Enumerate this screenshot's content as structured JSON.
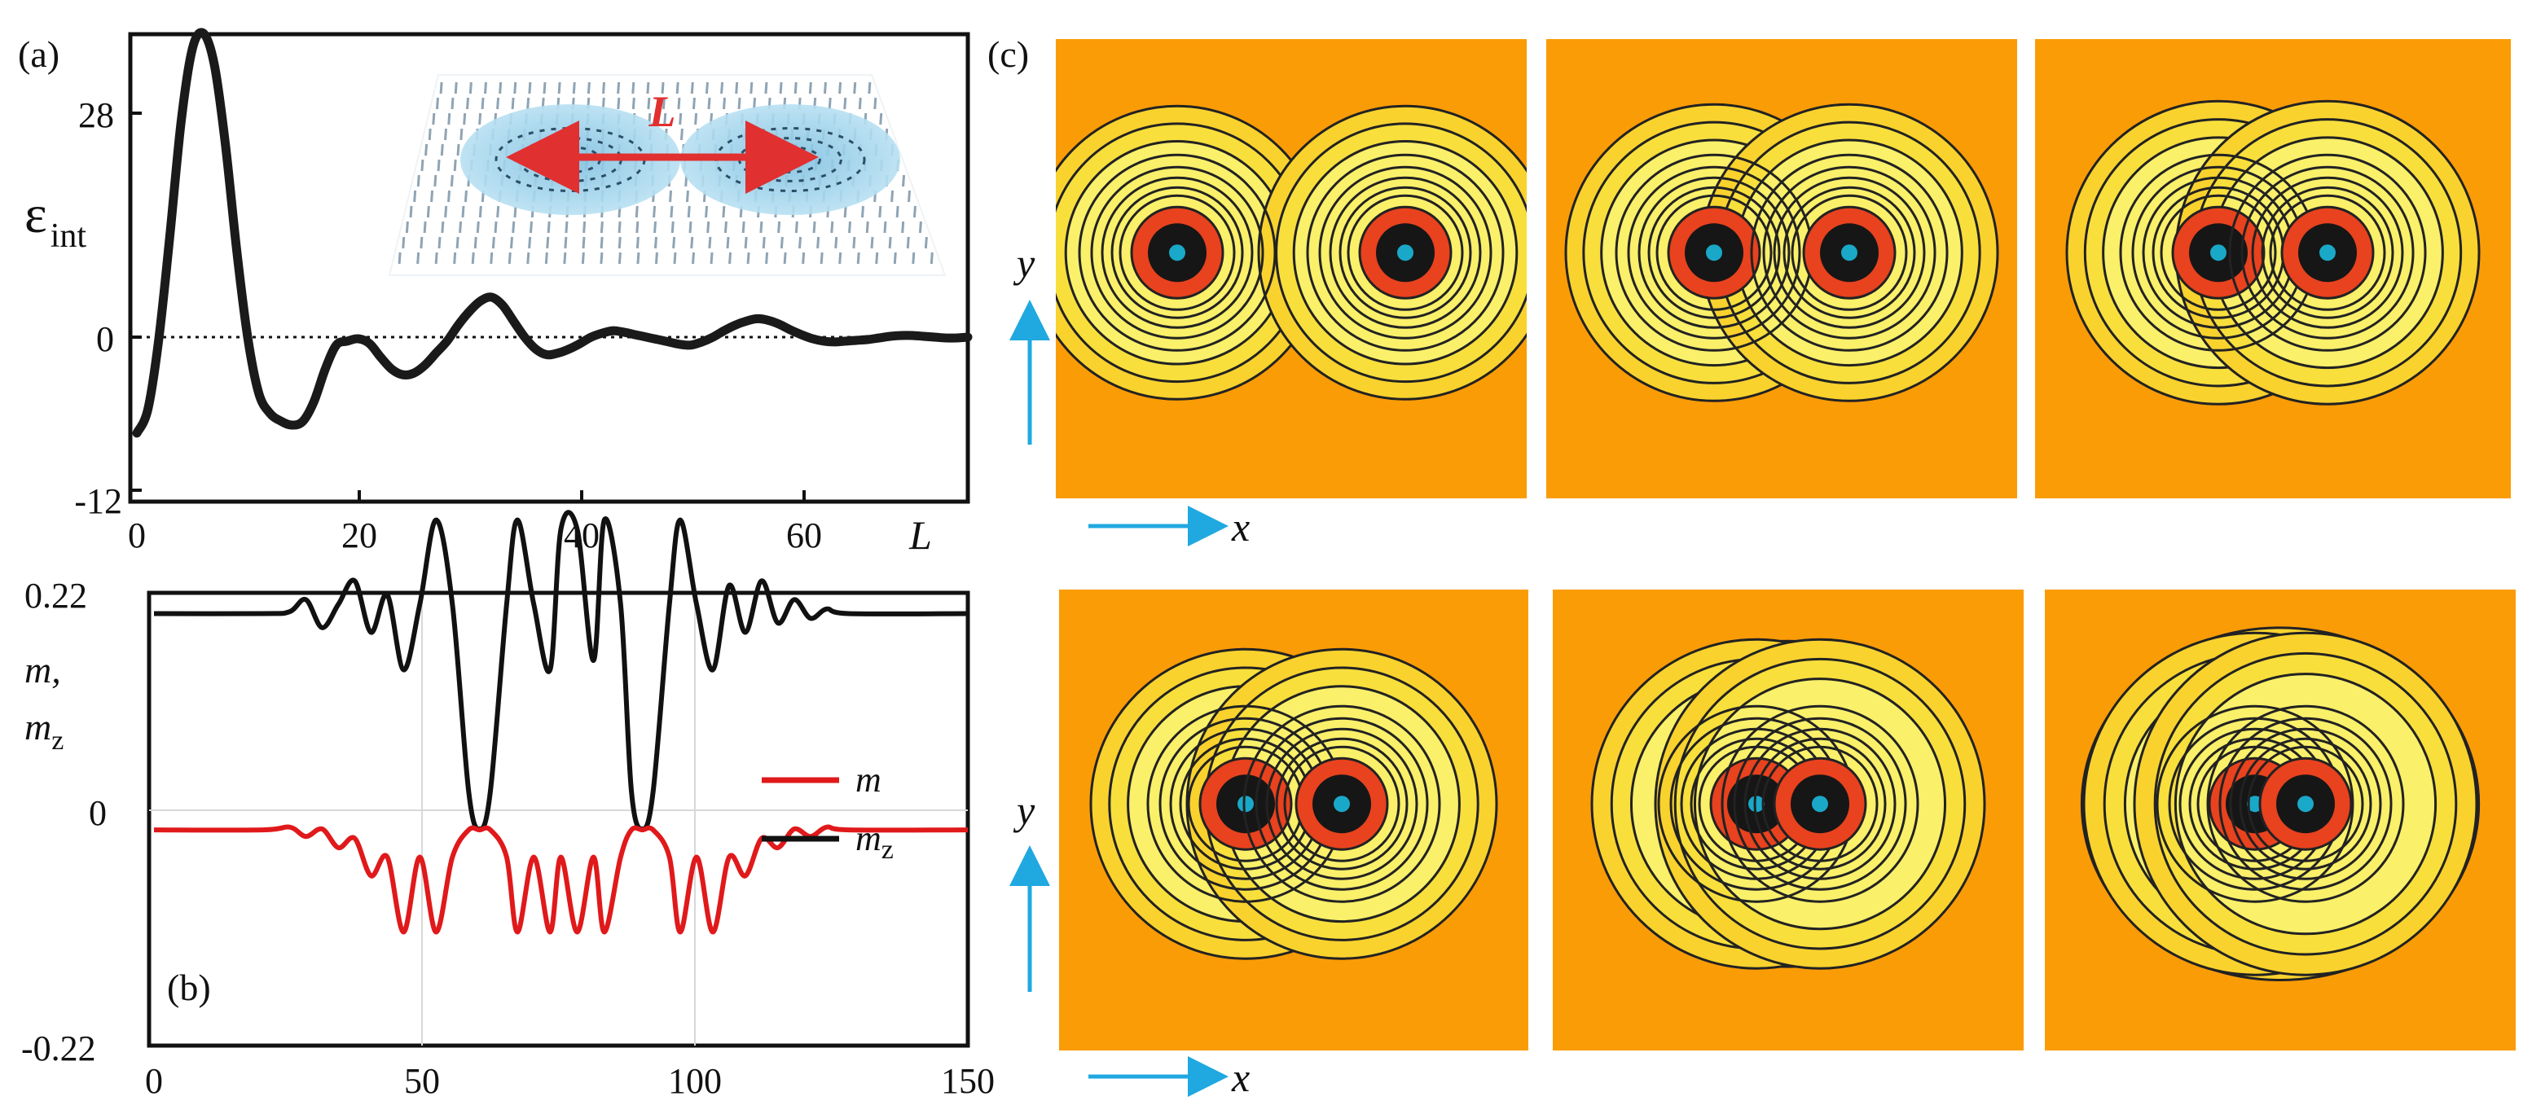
{
  "chart_data": [
    {
      "panel": "(a)",
      "type": "line",
      "title": "",
      "xlabel": "L",
      "ylabel": "ε",
      "ylabel_sub": "int",
      "xlim": [
        0,
        75
      ],
      "ylim": [
        -12,
        40
      ],
      "xticks": [
        "0",
        "20",
        "40",
        "60"
      ],
      "yticks": [
        "-12",
        "0",
        "28"
      ],
      "reference_line": {
        "y": 0,
        "style": "dotted"
      },
      "series": [
        {
          "name": "ε_int",
          "color": "#1a1a1a",
          "x": [
            0,
            1,
            2,
            3,
            4,
            5,
            6,
            7,
            8,
            9,
            10,
            11,
            12,
            13,
            14,
            15,
            16,
            17,
            18,
            19,
            20,
            21,
            22,
            23,
            24,
            25,
            26,
            27,
            28,
            29,
            30,
            31,
            32,
            33,
            34,
            35,
            36,
            37,
            38,
            39,
            40,
            41,
            42,
            43,
            44,
            45,
            46,
            47,
            48,
            49,
            50,
            51,
            52,
            53,
            54,
            55,
            56,
            57,
            58,
            59,
            60,
            61,
            62,
            63,
            64,
            65,
            66,
            67,
            68,
            69,
            70,
            71,
            72,
            73,
            74,
            75
          ],
          "y": [
            -12,
            -9,
            0,
            13,
            27,
            36,
            38,
            34,
            24,
            11,
            0,
            -7,
            -9.5,
            -10.5,
            -11,
            -10.5,
            -8,
            -4,
            -1,
            -0.5,
            -0.2,
            -0.8,
            -2.5,
            -4,
            -4.7,
            -4.5,
            -3.5,
            -2,
            -0.5,
            1.5,
            3.2,
            4.5,
            5,
            4,
            2,
            0,
            -1.5,
            -2.2,
            -2,
            -1.5,
            -0.8,
            0,
            0.5,
            0.8,
            0.6,
            0.3,
            0,
            -0.3,
            -0.6,
            -0.9,
            -1,
            -0.6,
            0,
            0.8,
            1.5,
            2,
            2.3,
            2.1,
            1.6,
            0.9,
            0.3,
            -0.2,
            -0.5,
            -0.6,
            -0.5,
            -0.4,
            -0.3,
            -0.1,
            0.1,
            0.2,
            0.2,
            0.1,
            0,
            -0.1,
            -0.1,
            0
          ]
        }
      ],
      "inset": {
        "label": "L",
        "description_color": "#a7d7ee"
      }
    },
    {
      "panel": "(b)",
      "type": "line",
      "title": "",
      "xlabel": "",
      "ylabel": "m, m_z",
      "xlim": [
        0,
        150
      ],
      "ylim": [
        -0.22,
        0.22
      ],
      "xticks": [
        "0",
        "50",
        "100",
        "150"
      ],
      "yticks": [
        "-0.22",
        "0",
        "0.22"
      ],
      "legend": {
        "position": "right",
        "entries": [
          {
            "name": "m",
            "color": "#e0191b"
          },
          {
            "name": "m_z",
            "color": "#111111"
          }
        ]
      },
      "series": [
        {
          "name": "m_z",
          "color": "#111111",
          "x": [
            0,
            20,
            25,
            28,
            31,
            34,
            37,
            40,
            43,
            46,
            49,
            52,
            55,
            58,
            60,
            62,
            65,
            67,
            70,
            73,
            75,
            78,
            81,
            83,
            86,
            88,
            90,
            92,
            95,
            97,
            100,
            103,
            106,
            109,
            112,
            115,
            118,
            121,
            124,
            128,
            150
          ],
          "y": [
            0.21,
            0.21,
            0.212,
            0.225,
            0.195,
            0.22,
            0.245,
            0.19,
            0.23,
            0.15,
            0.22,
            0.31,
            0.22,
            0.02,
            -0.02,
            0.02,
            0.22,
            0.31,
            0.22,
            0.15,
            0.3,
            0.3,
            0.16,
            0.31,
            0.22,
            0.02,
            -0.02,
            0.02,
            0.22,
            0.31,
            0.22,
            0.15,
            0.24,
            0.19,
            0.245,
            0.2,
            0.225,
            0.205,
            0.215,
            0.21,
            0.21
          ]
        },
        {
          "name": "m",
          "color": "#e0191b",
          "x": [
            0,
            20,
            25,
            28,
            31,
            34,
            37,
            40,
            43,
            46,
            49,
            52,
            55,
            58,
            60,
            62,
            65,
            67,
            70,
            73,
            75,
            78,
            81,
            83,
            86,
            88,
            90,
            92,
            95,
            97,
            100,
            103,
            106,
            109,
            112,
            115,
            118,
            121,
            124,
            128,
            150
          ],
          "y": [
            -0.021,
            -0.021,
            -0.018,
            -0.028,
            -0.02,
            -0.04,
            -0.03,
            -0.07,
            -0.05,
            -0.13,
            -0.05,
            -0.13,
            -0.05,
            -0.021,
            -0.021,
            -0.021,
            -0.05,
            -0.13,
            -0.05,
            -0.13,
            -0.05,
            -0.13,
            -0.05,
            -0.13,
            -0.05,
            -0.021,
            -0.021,
            -0.021,
            -0.05,
            -0.13,
            -0.05,
            -0.13,
            -0.05,
            -0.07,
            -0.03,
            -0.04,
            -0.02,
            -0.028,
            -0.018,
            -0.021,
            -0.021
          ]
        }
      ]
    },
    {
      "panel": "(c)",
      "type": "heatmap",
      "title": "",
      "xlabel": "x",
      "ylabel": "y",
      "rows": 2,
      "cols": 3,
      "description_order": "skyrmion pair separation decreasing left to right, top to bottom",
      "colors": {
        "background": "#fa9c06",
        "halo": "#f9d22e",
        "ring": "#e8421e",
        "core": "#161616",
        "center": "#1aa8c8",
        "contour": "#222222"
      },
      "panels": [
        {
          "separation": 280,
          "merge": 0
        },
        {
          "separation": 166,
          "merge": 0.05
        },
        {
          "separation": 134,
          "merge": 0.15
        },
        {
          "separation": 118,
          "merge": 0.25
        },
        {
          "separation": 78,
          "merge": 0.55
        },
        {
          "separation": 62,
          "merge": 0.75
        }
      ]
    }
  ],
  "labels": {
    "a": "(a)",
    "b": "(b)",
    "c": "(c)",
    "eps": "ε",
    "eps_sub": "int",
    "L_axis": "L",
    "L_inset": "L",
    "m_line1": "m,",
    "m_line2": "m",
    "m_line2_sub": "z",
    "legend_m": "m",
    "legend_mz": "m",
    "legend_mz_sub": "z",
    "x_word": "x",
    "y_word": "y"
  },
  "colors": {
    "arrow": "#20a8e0",
    "curve_black": "#1a1a1a",
    "curve_red": "#e0191b",
    "inset_arrow": "#e03030",
    "inset_disk": "#a7d7ee"
  }
}
